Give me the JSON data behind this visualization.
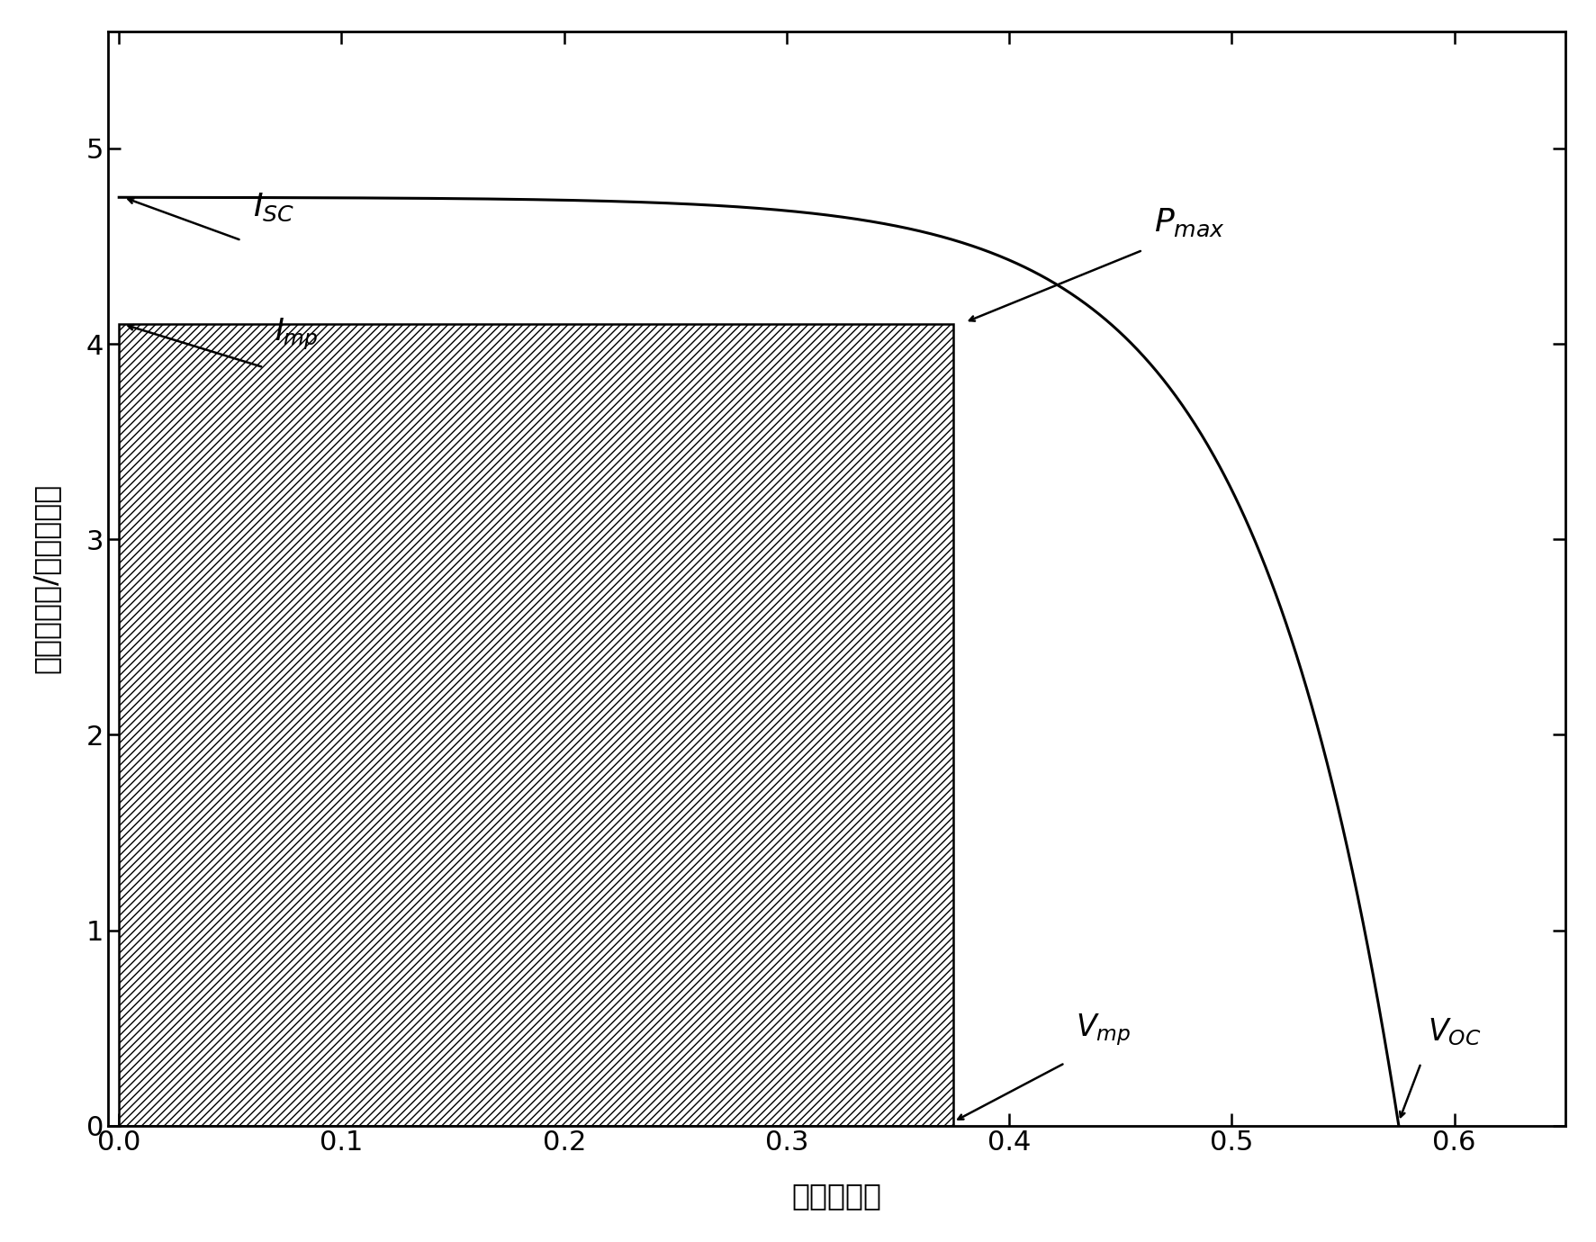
{
  "Isc": 4.75,
  "Imp": 4.1,
  "Vmp": 0.375,
  "Voc": 0.575,
  "xlim": [
    -0.005,
    0.65
  ],
  "ylim": [
    0.0,
    5.6
  ],
  "xticks": [
    0.0,
    0.1,
    0.2,
    0.3,
    0.4,
    0.5,
    0.6
  ],
  "yticks": [
    0,
    1,
    2,
    3,
    4,
    5
  ],
  "xlabel": "电压（伏）",
  "ylabel": "电流（毫安/平方厘米）",
  "line_color": "#000000",
  "bg_color": "#ffffff",
  "font_size": 22,
  "label_font_size": 24,
  "annotation_font_size": 26,
  "sub_font_size": 20
}
